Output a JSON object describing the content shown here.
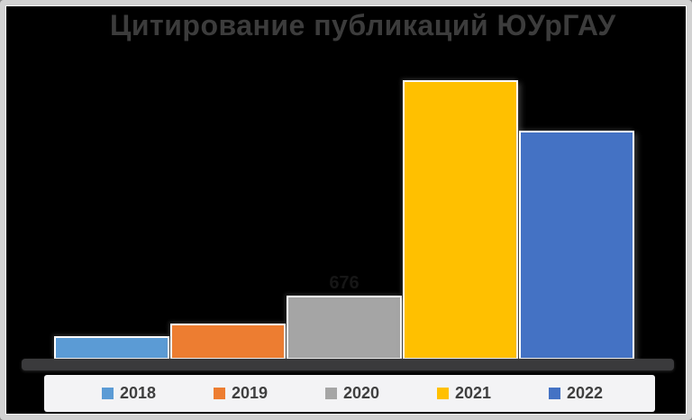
{
  "window": {
    "background": "#000000",
    "frame_border_color": "#d2d2d2"
  },
  "chart_data": {
    "type": "bar",
    "title": "Цитирование публикаций ЮУрГАУ",
    "categories": [
      "2018",
      "2019",
      "2020",
      "2021",
      "2022"
    ],
    "values": [
      250,
      380,
      676,
      2940,
      2410
    ],
    "series_colors": [
      "#5B9BD5",
      "#ED7D31",
      "#A5A5A5",
      "#FFC000",
      "#4472C4"
    ],
    "data_label": {
      "category": "2020",
      "text": "676"
    },
    "legend_labels": [
      "2018",
      "2019",
      "2020",
      "2021",
      "2022"
    ],
    "legend_position": "bottom",
    "grid": false,
    "xlabel": "",
    "ylabel": "",
    "ylim": [
      0,
      3100
    ],
    "plot_background": "#000000",
    "axis_floor_color": "#3a3a3c",
    "title_color": "#3c3c3c",
    "legend_background": "#f3f3f5",
    "legend_text_color": "#3f3f3f"
  }
}
